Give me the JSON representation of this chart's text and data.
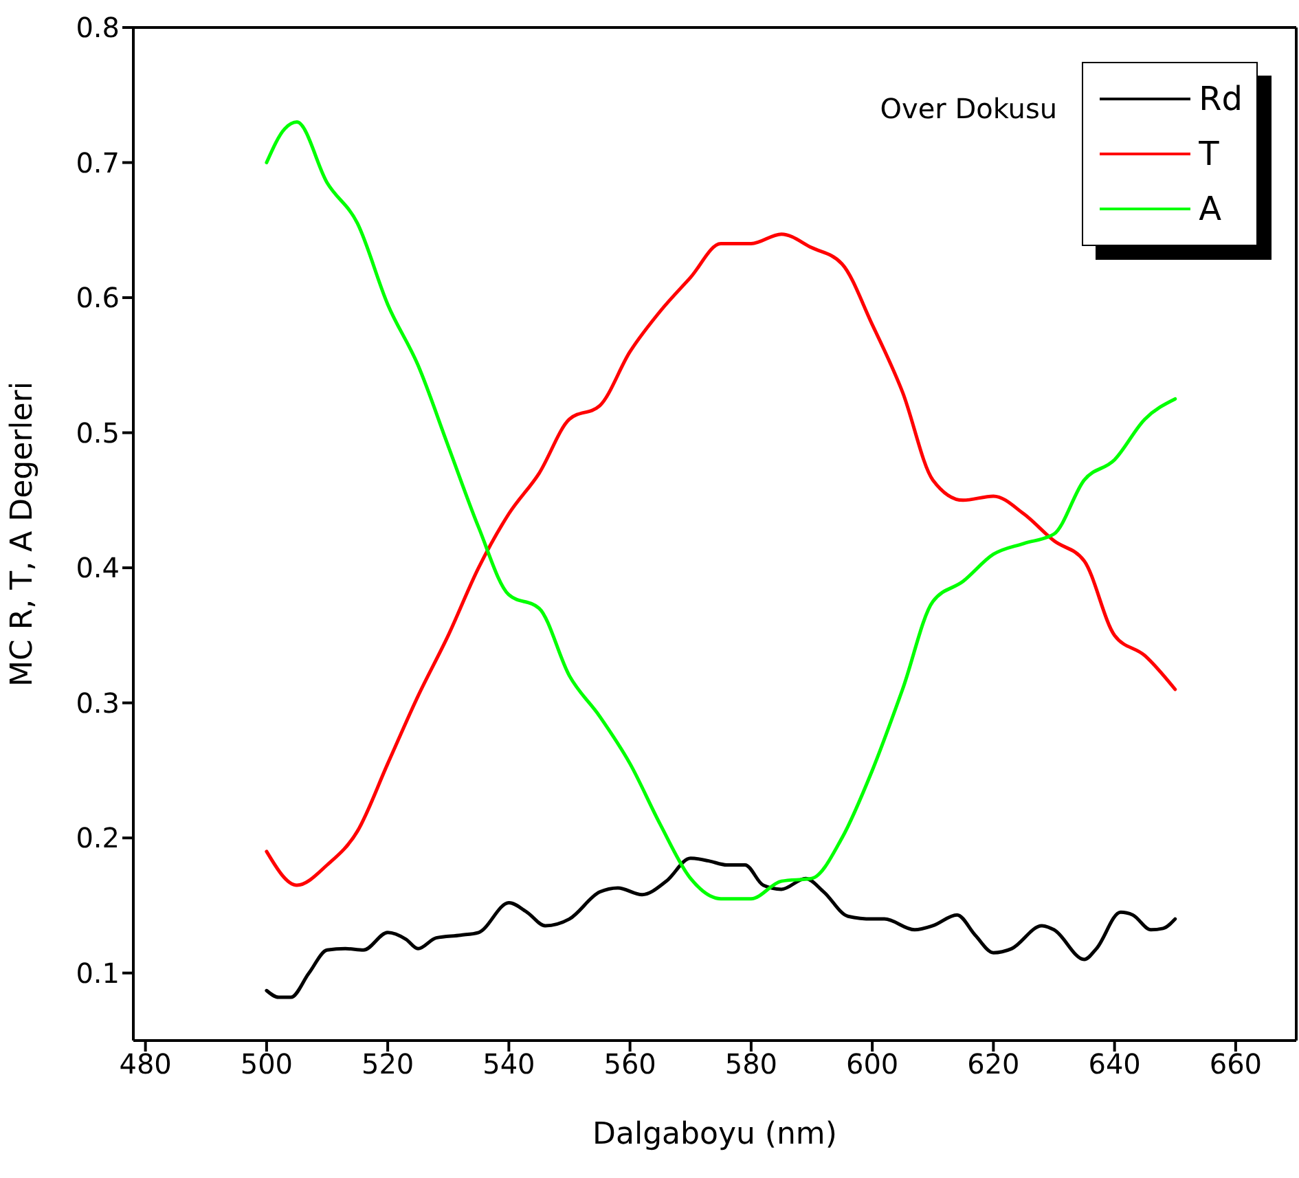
{
  "chart_data": {
    "type": "line",
    "xlabel": "Dalgaboyu (nm)",
    "ylabel": "MC R, T, A Degerleri",
    "legend_title": "Over Dokusu",
    "legend": "top right",
    "marker": "none",
    "line_style": "solid",
    "xlim": [
      478,
      670
    ],
    "xticks": [
      480,
      500,
      520,
      540,
      560,
      580,
      600,
      620,
      640,
      660
    ],
    "ylim": [
      0.05,
      0.8
    ],
    "yticks": [
      0.1,
      0.2,
      0.3,
      0.4,
      0.5,
      0.6,
      0.7,
      0.8
    ],
    "series": [
      {
        "name": "Rd",
        "color": "#000000",
        "x": [
          500,
          502,
          504,
          507,
          510,
          513,
          516,
          520,
          523,
          525,
          528,
          532,
          535,
          540,
          543,
          546,
          550,
          555,
          558,
          562,
          566,
          570,
          573,
          576,
          579,
          582,
          585,
          589,
          592,
          596,
          600,
          602,
          607,
          610,
          614,
          617,
          620,
          623,
          628,
          630,
          635,
          637,
          641,
          643,
          646,
          648,
          650
        ],
        "values": [
          0.087,
          0.082,
          0.082,
          0.1,
          0.117,
          0.118,
          0.117,
          0.13,
          0.125,
          0.118,
          0.126,
          0.128,
          0.13,
          0.152,
          0.145,
          0.135,
          0.14,
          0.16,
          0.163,
          0.158,
          0.168,
          0.185,
          0.183,
          0.18,
          0.18,
          0.165,
          0.162,
          0.17,
          0.16,
          0.142,
          0.14,
          0.14,
          0.132,
          0.135,
          0.143,
          0.128,
          0.115,
          0.118,
          0.135,
          0.132,
          0.11,
          0.118,
          0.145,
          0.143,
          0.132,
          0.133,
          0.14
        ]
      },
      {
        "name": "T",
        "color": "#ff0000",
        "x": [
          500,
          505,
          510,
          515,
          520,
          525,
          530,
          535,
          540,
          545,
          550,
          555,
          560,
          565,
          570,
          575,
          580,
          585,
          590,
          595,
          600,
          605,
          610,
          615,
          620,
          625,
          630,
          635,
          640,
          645,
          650
        ],
        "values": [
          0.19,
          0.165,
          0.18,
          0.205,
          0.255,
          0.305,
          0.35,
          0.4,
          0.44,
          0.47,
          0.51,
          0.52,
          0.56,
          0.59,
          0.615,
          0.64,
          0.64,
          0.647,
          0.637,
          0.625,
          0.58,
          0.53,
          0.465,
          0.45,
          0.453,
          0.44,
          0.42,
          0.405,
          0.35,
          0.335,
          0.31
        ]
      },
      {
        "name": "A",
        "color": "#00ff00",
        "x": [
          500,
          503,
          505,
          510,
          515,
          520,
          525,
          530,
          535,
          540,
          545,
          550,
          555,
          560,
          565,
          570,
          575,
          580,
          585,
          590,
          595,
          600,
          605,
          610,
          615,
          620,
          625,
          630,
          635,
          640,
          645,
          650
        ],
        "values": [
          0.7,
          0.725,
          0.73,
          0.685,
          0.655,
          0.595,
          0.55,
          0.49,
          0.43,
          0.38,
          0.37,
          0.32,
          0.29,
          0.255,
          0.21,
          0.17,
          0.155,
          0.155,
          0.168,
          0.17,
          0.2,
          0.25,
          0.31,
          0.375,
          0.39,
          0.41,
          0.418,
          0.425,
          0.465,
          0.48,
          0.51,
          0.525
        ]
      }
    ]
  }
}
